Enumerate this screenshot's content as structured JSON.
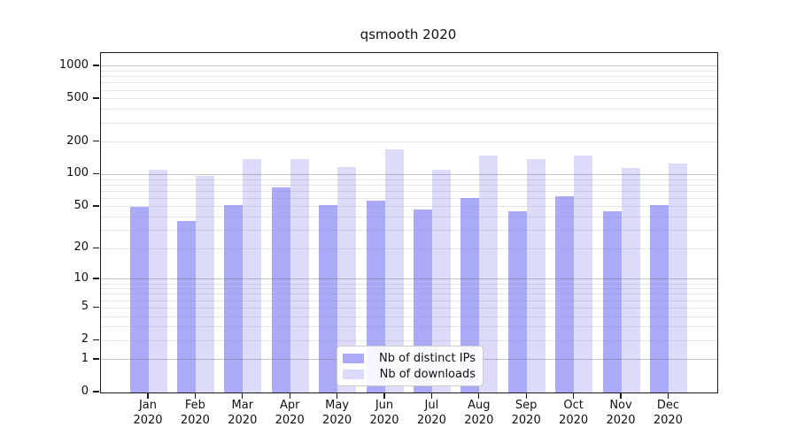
{
  "page": {
    "background": "#ffffff"
  },
  "chart_data": {
    "type": "bar",
    "title": "qsmooth 2020",
    "categories": [
      "Jan 2020",
      "Feb 2020",
      "Mar 2020",
      "Apr 2020",
      "May 2020",
      "Jun 2020",
      "Jul 2020",
      "Aug 2020",
      "Sep 2020",
      "Oct 2020",
      "Nov 2020",
      "Dec 2020"
    ],
    "series": [
      {
        "name": "Nb of distinct IPs",
        "color": "#abaaf9",
        "values": [
          50,
          37,
          52,
          76,
          52,
          57,
          47,
          61,
          45,
          63,
          45,
          52
        ]
      },
      {
        "name": "Nb of downloads",
        "color": "#dcdcfa",
        "values": [
          110,
          97,
          140,
          140,
          117,
          172,
          110,
          150,
          140,
          150,
          115,
          126
        ]
      }
    ],
    "ylabel": "",
    "xlabel": "",
    "yticks": [
      1000,
      500,
      200,
      100,
      50,
      20,
      10,
      5,
      2,
      1,
      0
    ],
    "yscale": "pseudo-log (log10(value+1))",
    "ylim": [
      0,
      1318
    ],
    "grid": "horizontal, major decades + faint minors, drawn over bars",
    "legend_position": "bottom-center inside plot",
    "bar_group": "paired bars per month, distinct-IPs left, downloads right"
  }
}
